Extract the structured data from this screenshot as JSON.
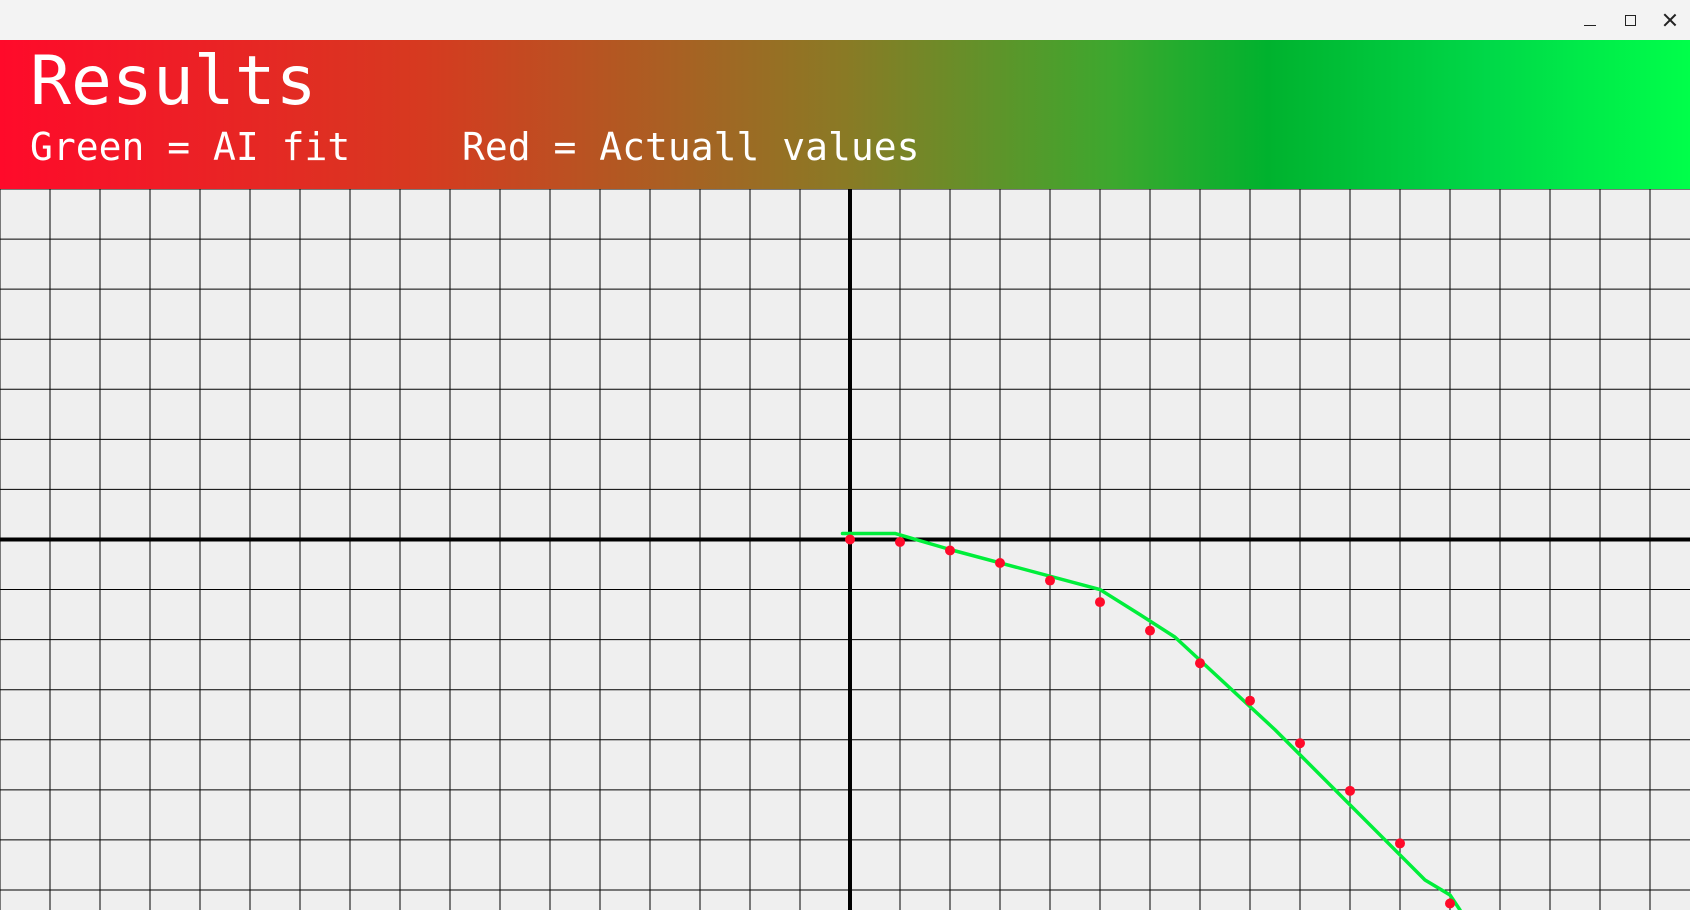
{
  "window": {
    "controls": {
      "minimize_icon": "minimize-icon",
      "maximize_icon": "maximize-icon",
      "close_icon": "close-icon"
    }
  },
  "header": {
    "title": "Results",
    "legend_green": "Green = AI fit",
    "legend_red": "Red = Actuall values",
    "gradient_colors": [
      "#ff0a2a",
      "#d63a20",
      "#8a7a25",
      "#3ca82e",
      "#00b22e",
      "#00d848",
      "#00ff4a"
    ]
  },
  "chart_data": {
    "type": "line",
    "grid": true,
    "xlim": [
      -17,
      16.8
    ],
    "ylim": [
      -7.4,
      7
    ],
    "x_axis_at": 0,
    "y_axis_at": 0,
    "series": [
      {
        "kind": "line",
        "color": "#00ee3a",
        "x": [
          -0.15,
          0.9,
          2.0,
          5.0,
          5.8,
          6.5,
          8.5,
          11.5,
          12.0,
          12.2
        ],
        "y": [
          0.12,
          0.12,
          -0.2,
          -1.0,
          -1.5,
          -1.95,
          -3.8,
          -6.8,
          -7.1,
          -7.4
        ]
      },
      {
        "kind": "scatter",
        "color": "#ff0a2a",
        "x": [
          0,
          1,
          2,
          3,
          4,
          5,
          6,
          7,
          8,
          9,
          10,
          11,
          12
        ],
        "y": [
          0,
          -0.05,
          -0.22,
          -0.47,
          -0.82,
          -1.25,
          -1.82,
          -2.47,
          -3.22,
          -4.07,
          -5.02,
          -6.07,
          -7.27
        ]
      }
    ]
  }
}
